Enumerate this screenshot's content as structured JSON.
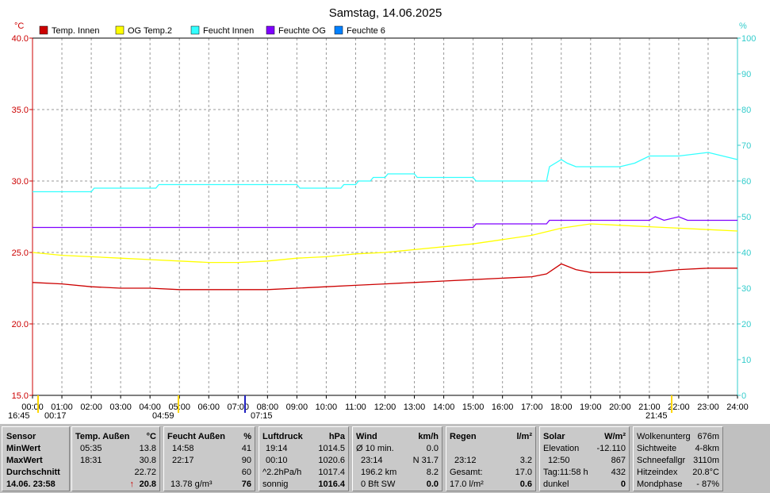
{
  "chart_data": {
    "type": "line",
    "title": "Samstag, 14.06.2025",
    "left_unit": "°C",
    "right_unit": "%",
    "left_ticks": [
      "15.0",
      "20.0",
      "25.0",
      "30.0",
      "35.0",
      "40.0"
    ],
    "right_ticks": [
      "0",
      "10",
      "20",
      "30",
      "40",
      "50",
      "60",
      "70",
      "80",
      "90",
      "100"
    ],
    "left_range": [
      15,
      40
    ],
    "right_range": [
      0,
      100
    ],
    "x_ticks": [
      "00:00",
      "01:00",
      "02:00",
      "03:00",
      "04:00",
      "05:00",
      "06:00",
      "07:00",
      "08:00",
      "09:00",
      "10:00",
      "11:00",
      "12:00",
      "13:00",
      "14:00",
      "15:00",
      "16:00",
      "17:00",
      "18:00",
      "19:00",
      "20:00",
      "21:00",
      "22:00",
      "23:00",
      "24:00"
    ],
    "x_range_hours": [
      0,
      24
    ],
    "grid": true,
    "legend_position": "top-left",
    "series": [
      {
        "name": "Temp. Innen",
        "axis": "left",
        "color": "#cc0000",
        "points": [
          [
            0,
            22.9
          ],
          [
            1,
            22.8
          ],
          [
            2,
            22.6
          ],
          [
            3,
            22.5
          ],
          [
            4,
            22.5
          ],
          [
            5,
            22.4
          ],
          [
            6,
            22.4
          ],
          [
            7,
            22.4
          ],
          [
            8,
            22.4
          ],
          [
            9,
            22.5
          ],
          [
            10,
            22.6
          ],
          [
            11,
            22.7
          ],
          [
            12,
            22.8
          ],
          [
            13,
            22.9
          ],
          [
            14,
            23.0
          ],
          [
            15,
            23.1
          ],
          [
            16,
            23.2
          ],
          [
            17,
            23.3
          ],
          [
            17.5,
            23.5
          ],
          [
            18,
            24.2
          ],
          [
            18.5,
            23.8
          ],
          [
            19,
            23.6
          ],
          [
            20,
            23.6
          ],
          [
            21,
            23.6
          ],
          [
            22,
            23.8
          ],
          [
            23,
            23.9
          ],
          [
            24,
            23.9
          ]
        ]
      },
      {
        "name": "OG Temp.2",
        "axis": "left",
        "color": "#ffff00",
        "points": [
          [
            0,
            25.0
          ],
          [
            1,
            24.8
          ],
          [
            2,
            24.7
          ],
          [
            3,
            24.6
          ],
          [
            4,
            24.5
          ],
          [
            5,
            24.4
          ],
          [
            6,
            24.3
          ],
          [
            7,
            24.3
          ],
          [
            8,
            24.4
          ],
          [
            9,
            24.6
          ],
          [
            10,
            24.7
          ],
          [
            11,
            24.9
          ],
          [
            12,
            25.0
          ],
          [
            13,
            25.2
          ],
          [
            14,
            25.4
          ],
          [
            15,
            25.6
          ],
          [
            16,
            25.9
          ],
          [
            17,
            26.2
          ],
          [
            18,
            26.7
          ],
          [
            19,
            27.0
          ],
          [
            20,
            26.9
          ],
          [
            21,
            26.8
          ],
          [
            22,
            26.7
          ],
          [
            23,
            26.6
          ],
          [
            24,
            26.5
          ]
        ]
      },
      {
        "name": "Feucht Innen",
        "axis": "right",
        "color": "#33ffff",
        "points": [
          [
            0,
            57
          ],
          [
            2,
            57
          ],
          [
            2.1,
            58
          ],
          [
            4.2,
            58
          ],
          [
            4.3,
            59
          ],
          [
            9,
            59
          ],
          [
            9.1,
            58
          ],
          [
            10.5,
            58
          ],
          [
            10.6,
            59
          ],
          [
            11,
            59
          ],
          [
            11.1,
            60
          ],
          [
            11.5,
            60
          ],
          [
            11.6,
            61
          ],
          [
            12,
            61
          ],
          [
            12.1,
            62
          ],
          [
            13,
            62
          ],
          [
            13.1,
            61
          ],
          [
            15,
            61
          ],
          [
            15.1,
            60
          ],
          [
            17.3,
            60
          ],
          [
            17.5,
            60
          ],
          [
            17.6,
            64
          ],
          [
            18,
            66
          ],
          [
            18.2,
            65
          ],
          [
            18.5,
            64
          ],
          [
            20,
            64
          ],
          [
            20.5,
            65
          ],
          [
            21,
            67
          ],
          [
            22,
            67
          ],
          [
            23,
            68
          ],
          [
            24,
            66
          ]
        ]
      },
      {
        "name": "Feuchte OG",
        "axis": "right",
        "color": "#7f00ff",
        "points": [
          [
            0,
            47
          ],
          [
            15,
            47
          ],
          [
            15.1,
            48
          ],
          [
            17.5,
            48
          ],
          [
            17.6,
            49
          ],
          [
            20,
            49
          ],
          [
            21,
            49
          ],
          [
            21.2,
            50
          ],
          [
            21.5,
            49
          ],
          [
            22,
            50
          ],
          [
            22.3,
            49
          ],
          [
            24,
            49
          ]
        ]
      },
      {
        "name": "Feuchte 6",
        "axis": "right",
        "color": "#0080ff",
        "points": []
      }
    ],
    "annotations": {
      "sunrise_left": "16:45",
      "sunrise_right": "00:17",
      "sun_time": "04:59",
      "moon_time": "07:15",
      "sunset_time": "21:45"
    }
  },
  "table": {
    "sensor": {
      "header": "Sensor",
      "min": "MinWert",
      "max": "MaxWert",
      "avg": "Durchschnitt",
      "date": "14.06. 23:58"
    },
    "temp": {
      "header": "Temp. Außen",
      "unit": "°C",
      "min_time": "05:35",
      "min_val": "13.8",
      "max_time": "18:31",
      "max_val": "30.8",
      "avg": "22.72",
      "current": "20.8",
      "trend": "↑"
    },
    "humid": {
      "header": "Feucht Außen",
      "unit": "%",
      "min_time": "14:58",
      "min_val": "41",
      "max_time": "22:17",
      "max_val": "90",
      "avg": "60",
      "abs": "13.78 g/m³",
      "current": "76"
    },
    "pressure": {
      "header": "Luftdruck",
      "unit": "hPa",
      "r1_time": "19:14",
      "r1_val": "1014.5",
      "r2_time": "00:10",
      "r2_val": "1020.6",
      "r3_label": "^2.2hPa/h",
      "r3_val": "1017.4",
      "r4_label": "sonnig",
      "r4_val": "1016.4"
    },
    "wind": {
      "header": "Wind",
      "unit": "km/h",
      "r1_label": "Ø 10 min.",
      "r1_val": "0.0",
      "r2_time": "23:14",
      "r2_val": "N 31.7",
      "r3_label": "196.2 km",
      "r3_val": "8.2",
      "r4_label": "0 Bft SW",
      "r4_val": "0.0"
    },
    "rain": {
      "header": "Regen",
      "unit": "l/m²",
      "r2_time": "23:12",
      "r2_val": "3.2",
      "r3_label": "Gesamt:",
      "r3_val": "17.0",
      "r4_label": "17.0 l/m²",
      "r4_val": "0.6"
    },
    "solar": {
      "header": "Solar",
      "unit": "W/m²",
      "r1_label": "Elevation",
      "r1_val": "-12.110",
      "r2_time": "12:50",
      "r2_val": "867",
      "r3_label": "Tag:11:58 h",
      "r3_val": "432",
      "r4_label": "dunkel",
      "r4_val": "0"
    },
    "misc": {
      "r0_label": "Wolkenunterg",
      "r0_val": "676m",
      "r1_label": "Sichtweite",
      "r1_val": "4-8km",
      "r2_label": "Schneefallgr",
      "r2_val": "3110m",
      "r3_label": "Hitzeindex",
      "r3_val": "20.8°C",
      "r4_label": "Mondphase",
      "r4_val": "- 87%"
    }
  }
}
